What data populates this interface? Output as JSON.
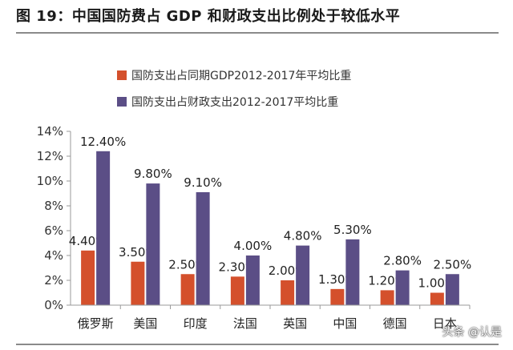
{
  "figure": {
    "title": "图 19：中国国防费占 GDP 和财政支出比例处于较低水平"
  },
  "watermark": "头条 @认是",
  "colors": {
    "gdp": "#d4502c",
    "fiscal": "#5b4e86",
    "axis": "#9a9a9a"
  },
  "chart_data": {
    "type": "bar",
    "title": "",
    "xlabel": "",
    "ylabel": "",
    "categories": [
      "俄罗斯",
      "美国",
      "印度",
      "法国",
      "英国",
      "中国",
      "德国",
      "日本"
    ],
    "series": [
      {
        "name": "国防支出占同期GDP2012-2017年平均比重",
        "values": [
          4.4,
          3.5,
          2.5,
          2.3,
          2.0,
          1.3,
          1.2,
          1.0
        ],
        "labels": [
          "4.40%",
          "3.50%",
          "2.50%",
          "2.30%",
          "2.00%",
          "1.30%",
          "1.20%",
          "1.00%"
        ]
      },
      {
        "name": "国防支出占财政支出2012-2017平均比重",
        "values": [
          12.4,
          9.8,
          9.1,
          4.0,
          4.8,
          5.3,
          2.8,
          2.5
        ],
        "labels": [
          "12.40%",
          "9.80%",
          "9.10%",
          "4.00%",
          "4.80%",
          "5.30%",
          "2.80%",
          "2.50%"
        ]
      }
    ],
    "ylim": [
      0,
      14
    ],
    "yticks": [
      "0%",
      "2%",
      "4%",
      "6%",
      "8%",
      "10%",
      "12%",
      "14%"
    ],
    "grid": false,
    "legend_position": "top-left"
  }
}
